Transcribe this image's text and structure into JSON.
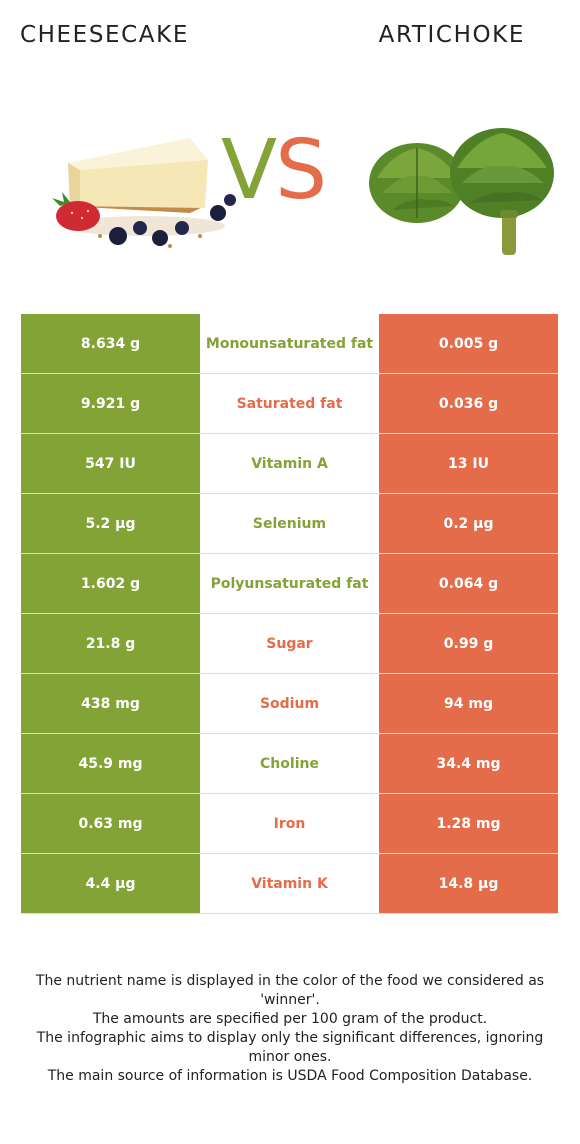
{
  "header": {
    "left_food": "CHEESECAKE",
    "right_food": "ARTICHOKE",
    "vs_v": "V",
    "vs_s": "S"
  },
  "colors": {
    "left": "#84a336",
    "right": "#e56c4a"
  },
  "images": {
    "left": "cheesecake-slice-with-berries",
    "right": "artichokes"
  },
  "rows": [
    {
      "left": "8.634 g",
      "nutrient": "Monounsaturated fat",
      "right": "0.005 g",
      "winner": "left"
    },
    {
      "left": "9.921 g",
      "nutrient": "Saturated fat",
      "right": "0.036 g",
      "winner": "right"
    },
    {
      "left": "547 IU",
      "nutrient": "Vitamin A",
      "right": "13 IU",
      "winner": "left"
    },
    {
      "left": "5.2 µg",
      "nutrient": "Selenium",
      "right": "0.2 µg",
      "winner": "left"
    },
    {
      "left": "1.602 g",
      "nutrient": "Polyunsaturated fat",
      "right": "0.064 g",
      "winner": "left"
    },
    {
      "left": "21.8 g",
      "nutrient": "Sugar",
      "right": "0.99 g",
      "winner": "right"
    },
    {
      "left": "438 mg",
      "nutrient": "Sodium",
      "right": "94 mg",
      "winner": "right"
    },
    {
      "left": "45.9 mg",
      "nutrient": "Choline",
      "right": "34.4 mg",
      "winner": "left"
    },
    {
      "left": "0.63 mg",
      "nutrient": "Iron",
      "right": "1.28 mg",
      "winner": "right"
    },
    {
      "left": "4.4 µg",
      "nutrient": "Vitamin K",
      "right": "14.8 µg",
      "winner": "right"
    }
  ],
  "footer": {
    "line1": "The nutrient name is displayed in the color of the food we considered as 'winner'.",
    "line2": "The amounts are specified per 100 gram of the product.",
    "line3": "The infographic aims to display only the significant differences, ignoring minor ones.",
    "line4": "The main source of information is USDA Food Composition Database."
  }
}
